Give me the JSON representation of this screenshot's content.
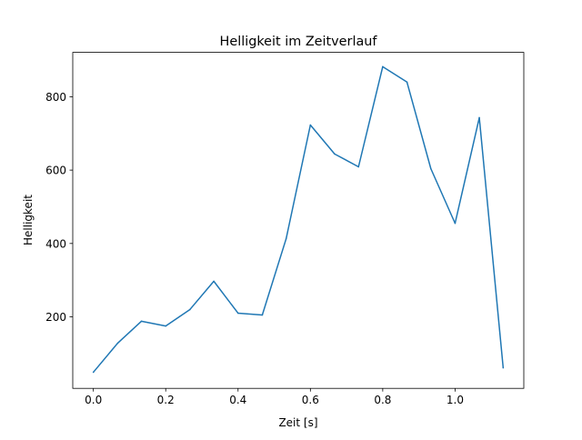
{
  "chart_data": {
    "type": "line",
    "title": "Helligkeit im Zeitverlauf",
    "xlabel": "Zeit [s]",
    "ylabel": "Helligkeit",
    "xlim": [
      -0.057,
      1.19
    ],
    "ylim": [
      5,
      921
    ],
    "xticks": [
      0.0,
      0.2,
      0.4,
      0.6,
      0.8,
      1.0
    ],
    "xtick_labels": [
      "0.0",
      "0.2",
      "0.4",
      "0.6",
      "0.8",
      "1.0"
    ],
    "yticks": [
      200,
      400,
      600,
      800
    ],
    "ytick_labels": [
      "200",
      "400",
      "600",
      "800"
    ],
    "grid": false,
    "color": "#1f77b4",
    "series": [
      {
        "name": "Helligkeit",
        "x": [
          0,
          0.067,
          0.133,
          0.2,
          0.267,
          0.333,
          0.4,
          0.467,
          0.533,
          0.6,
          0.667,
          0.733,
          0.8,
          0.867,
          0.933,
          1.0,
          1.067,
          1.133
        ],
        "y": [
          49,
          128,
          188,
          175,
          220,
          297,
          210,
          205,
          413,
          723,
          644,
          609,
          882,
          840,
          604,
          455,
          743,
          61
        ]
      }
    ]
  }
}
